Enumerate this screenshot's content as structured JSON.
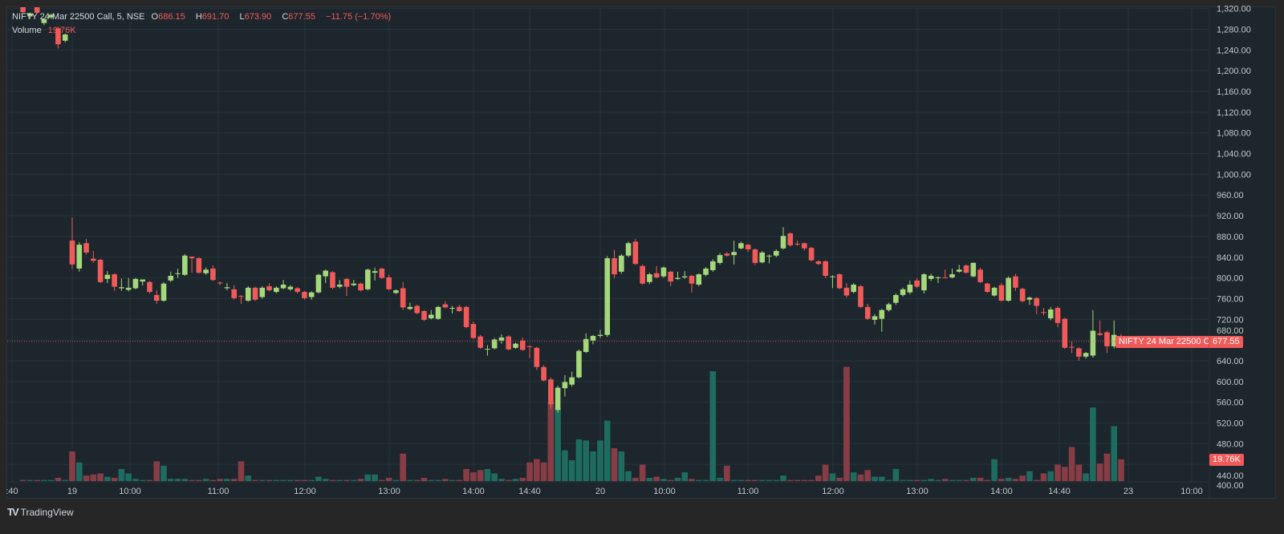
{
  "legend": {
    "symbol": "NIFTY 24 Mar 22500 Call, 5, NSE",
    "open_label": "O",
    "open": "686.15",
    "high_label": "H",
    "high": "691.70",
    "low_label": "L",
    "low": "673.90",
    "close_label": "C",
    "close": "677.55",
    "change": "−11.75 (−1.70%)",
    "volume_label": "Volume",
    "volume": "19.76K"
  },
  "price_tag": {
    "name": "NIFTY 24 Mar 22500 Call",
    "value": "677.55"
  },
  "volume_tag": "19.76K",
  "branding": {
    "logo_text": "TradingView"
  },
  "colors": {
    "up": "#a5d77b",
    "down": "#f25a5a",
    "vol_up": "#1e6b60",
    "vol_down": "#883d46",
    "background": "#1c262c",
    "grid": "#27323a"
  },
  "chart_data": {
    "type": "candlestick",
    "title": "NIFTY 24 Mar 22500 Call, 5, NSE",
    "interval": "5",
    "ylim": [
      400,
      1320
    ],
    "price_ticks": [
      "1,320.00",
      "1,280.00",
      "1,240.00",
      "1,200.00",
      "1,160.00",
      "1,120.00",
      "1,080.00",
      "1,040.00",
      "1,000.00",
      "960.00",
      "920.00",
      "880.00",
      "840.00",
      "800.00",
      "760.00",
      "720.00",
      "680.00",
      "640.00",
      "600.00",
      "560.00",
      "520.00",
      "480.00",
      "440.00",
      "400.00"
    ],
    "price_tick_values": [
      1320,
      1280,
      1240,
      1200,
      1160,
      1120,
      1080,
      1040,
      1000,
      960,
      920,
      880,
      840,
      800,
      760,
      720,
      680,
      640,
      600,
      560,
      520,
      480,
      440,
      400
    ],
    "time_ticks": [
      ":40",
      "19",
      "10:00",
      "11:00",
      "12:00",
      "13:00",
      "14:00",
      "14:40",
      "20",
      "10:00",
      "11:00",
      "12:00",
      "13:00",
      "14:00",
      "14:40",
      "23",
      "10:00"
    ],
    "last_price": 677.55,
    "volume_unit": "K",
    "sessions": [
      {
        "name": "prior",
        "ohlc": [
          [
            1325,
            1330,
            1312,
            1313
          ],
          [
            1305,
            1312,
            1300,
            1310
          ],
          [
            1325,
            1328,
            1310,
            1312
          ],
          [
            1292,
            1302,
            1288,
            1300
          ],
          [
            1303,
            1310,
            1300,
            1308
          ],
          [
            1282,
            1285,
            1243,
            1251
          ],
          [
            1258,
            1272,
            1255,
            1270
          ]
        ],
        "volume": [
          1,
          1,
          1,
          1,
          1,
          3,
          1
        ]
      },
      {
        "name": "19",
        "ohlc": [
          [
            872,
            917,
            817,
            826
          ],
          [
            818,
            869,
            812,
            864
          ],
          [
            867,
            875,
            845,
            849
          ],
          [
            837,
            852,
            829,
            833
          ],
          [
            835,
            837,
            790,
            792
          ],
          [
            798,
            813,
            790,
            806
          ],
          [
            807,
            809,
            775,
            783
          ],
          [
            780,
            799,
            775,
            782
          ],
          [
            777,
            800,
            774,
            781
          ],
          [
            780,
            800,
            778,
            798
          ],
          [
            793,
            797,
            785,
            797
          ],
          [
            792,
            794,
            770,
            773
          ],
          [
            767,
            776,
            750,
            756
          ],
          [
            756,
            792,
            754,
            789
          ],
          [
            795,
            812,
            792,
            804
          ],
          [
            808,
            818,
            800,
            809
          ],
          [
            806,
            846,
            804,
            843
          ],
          [
            841,
            842,
            810,
            838
          ],
          [
            838,
            840,
            808,
            810
          ],
          [
            809,
            820,
            806,
            816
          ],
          [
            818,
            824,
            794,
            796
          ],
          [
            791,
            793,
            786,
            790
          ],
          [
            780,
            790,
            776,
            782
          ],
          [
            778,
            786,
            758,
            761
          ],
          [
            765,
            767,
            750,
            764
          ],
          [
            756,
            784,
            754,
            781
          ],
          [
            781,
            783,
            755,
            758
          ],
          [
            763,
            784,
            760,
            781
          ],
          [
            784,
            790,
            774,
            776
          ],
          [
            773,
            784,
            770,
            781
          ],
          [
            780,
            796,
            778,
            787
          ],
          [
            778,
            786,
            775,
            783
          ],
          [
            780,
            782,
            770,
            773
          ],
          [
            773,
            775,
            758,
            761
          ],
          [
            763,
            774,
            758,
            772
          ],
          [
            772,
            808,
            770,
            806
          ],
          [
            803,
            816,
            790,
            814
          ],
          [
            811,
            813,
            778,
            781
          ],
          [
            783,
            796,
            780,
            787
          ],
          [
            798,
            800,
            765,
            783
          ],
          [
            786,
            796,
            784,
            789
          ],
          [
            789,
            791,
            774,
            776
          ],
          [
            778,
            818,
            776,
            816
          ],
          [
            810,
            820,
            795,
            813
          ],
          [
            818,
            820,
            798,
            800
          ],
          [
            801,
            806,
            776,
            778
          ],
          [
            771,
            778,
            769,
            776
          ],
          [
            780,
            792,
            738,
            743
          ],
          [
            740,
            752,
            738,
            744
          ],
          [
            746,
            748,
            730,
            732
          ],
          [
            736,
            738,
            717,
            719
          ],
          [
            722,
            738,
            720,
            729
          ],
          [
            721,
            746,
            719,
            744
          ],
          [
            749,
            755,
            741,
            743
          ],
          [
            741,
            746,
            731,
            742
          ],
          [
            744,
            748,
            734,
            736
          ],
          [
            744,
            746,
            703,
            705
          ],
          [
            711,
            716,
            682,
            684
          ],
          [
            687,
            690,
            663,
            665
          ],
          [
            662,
            670,
            650,
            663
          ],
          [
            664,
            684,
            662,
            681
          ],
          [
            679,
            691,
            673,
            685
          ],
          [
            687,
            689,
            660,
            662
          ],
          [
            665,
            675,
            663,
            673
          ],
          [
            679,
            685,
            659,
            661
          ],
          [
            668,
            670,
            645,
            667
          ],
          [
            665,
            667,
            622,
            628
          ],
          [
            628,
            632,
            600,
            602
          ],
          [
            604,
            608,
            548,
            556
          ],
          [
            545,
            592,
            540,
            588
          ],
          [
            587,
            612,
            571,
            599
          ],
          [
            594,
            619,
            590,
            608
          ],
          [
            608,
            662,
            606,
            659
          ],
          [
            657,
            693,
            655,
            682
          ],
          [
            679,
            690,
            672,
            688
          ]
        ],
        "volume": [
          27,
          17,
          5,
          6,
          7,
          4,
          3,
          11,
          7,
          2,
          1,
          1,
          18,
          14,
          2,
          2,
          2,
          1,
          1,
          2,
          1,
          2,
          2,
          2,
          18,
          5,
          1,
          1,
          1,
          1,
          1,
          1,
          1,
          1,
          1,
          4,
          2,
          1,
          1,
          1,
          1,
          2,
          6,
          6,
          1,
          3,
          1,
          25,
          1,
          1,
          3,
          1,
          1,
          2,
          1,
          1,
          11,
          8,
          10,
          11,
          7,
          2,
          1,
          2,
          3,
          17,
          20,
          17,
          72,
          66,
          28,
          19,
          38,
          37,
          27
        ]
      },
      {
        "name": "20",
        "ohlc": [
          [
            688,
            700,
            684,
            690
          ],
          [
            690,
            842,
            686,
            838
          ],
          [
            838,
            854,
            800,
            807
          ],
          [
            812,
            846,
            808,
            843
          ],
          [
            843,
            870,
            840,
            867
          ],
          [
            870,
            875,
            825,
            827
          ],
          [
            823,
            826,
            787,
            789
          ],
          [
            792,
            810,
            788,
            807
          ],
          [
            809,
            823,
            799,
            801
          ],
          [
            803,
            822,
            800,
            820
          ],
          [
            812,
            814,
            784,
            793
          ],
          [
            798,
            812,
            796,
            800
          ],
          [
            801,
            813,
            798,
            803
          ],
          [
            804,
            806,
            772,
            789
          ],
          [
            787,
            809,
            784,
            807
          ],
          [
            806,
            821,
            803,
            818
          ],
          [
            815,
            836,
            812,
            832
          ],
          [
            829,
            848,
            826,
            844
          ],
          [
            847,
            850,
            841,
            843
          ],
          [
            844,
            872,
            826,
            850
          ],
          [
            857,
            870,
            855,
            867
          ],
          [
            864,
            866,
            850,
            855
          ],
          [
            855,
            857,
            825,
            829
          ],
          [
            830,
            852,
            828,
            849
          ],
          [
            843,
            845,
            828,
            843
          ],
          [
            843,
            855,
            840,
            852
          ],
          [
            857,
            898,
            855,
            881
          ],
          [
            886,
            888,
            860,
            863
          ],
          [
            866,
            872,
            862,
            865
          ],
          [
            867,
            868,
            853,
            857
          ],
          [
            858,
            860,
            832,
            834
          ],
          [
            832,
            834,
            825,
            827
          ],
          [
            832,
            834,
            800,
            804
          ],
          [
            803,
            805,
            780,
            803
          ],
          [
            807,
            809,
            778,
            780
          ],
          [
            781,
            790,
            762,
            766
          ],
          [
            773,
            790,
            770,
            787
          ],
          [
            784,
            786,
            742,
            744
          ],
          [
            744,
            750,
            719,
            721
          ],
          [
            719,
            730,
            710,
            726
          ],
          [
            721,
            740,
            696,
            738
          ],
          [
            738,
            752,
            735,
            749
          ],
          [
            752,
            770,
            748,
            767
          ],
          [
            767,
            781,
            764,
            778
          ],
          [
            772,
            795,
            768,
            787
          ],
          [
            795,
            800,
            780,
            783
          ],
          [
            776,
            809,
            770,
            807
          ],
          [
            798,
            808,
            794,
            804
          ],
          [
            801,
            803,
            790,
            801
          ],
          [
            801,
            816,
            799,
            800
          ],
          [
            801,
            818,
            799,
            807
          ],
          [
            812,
            825,
            810,
            816
          ],
          [
            824,
            826,
            808,
            810
          ],
          [
            803,
            830,
            801,
            829
          ],
          [
            816,
            820,
            790,
            792
          ],
          [
            789,
            791,
            771,
            773
          ],
          [
            766,
            783,
            764,
            781
          ],
          [
            786,
            790,
            754,
            756
          ],
          [
            756,
            803,
            754,
            800
          ],
          [
            803,
            808,
            775,
            781
          ],
          [
            779,
            781,
            753,
            755
          ],
          [
            758,
            764,
            748,
            762
          ],
          [
            761,
            763,
            730,
            746
          ],
          [
            734,
            742,
            728,
            733
          ],
          [
            722,
            744,
            718,
            739
          ],
          [
            742,
            745,
            705,
            713
          ],
          [
            721,
            723,
            663,
            665
          ],
          [
            667,
            677,
            655,
            666
          ],
          [
            664,
            666,
            640,
            648
          ],
          [
            648,
            657,
            644,
            655
          ],
          [
            650,
            738,
            646,
            698
          ],
          [
            693,
            718,
            688,
            690
          ],
          [
            695,
            698,
            655,
            668
          ],
          [
            668,
            718,
            664,
            690
          ],
          [
            686.15,
            691.7,
            673.9,
            677.55
          ]
        ],
        "volume": [
          37,
          55,
          30,
          27,
          9,
          3,
          15,
          3,
          4,
          2,
          1,
          3,
          8,
          2,
          1,
          1,
          100,
          3,
          14,
          1,
          1,
          1,
          1,
          1,
          1,
          1,
          5,
          1,
          1,
          1,
          1,
          5,
          15,
          7,
          3,
          104,
          8,
          6,
          10,
          4,
          4,
          1,
          11,
          1,
          1,
          1,
          1,
          2,
          1,
          2,
          1,
          1,
          1,
          3,
          3,
          1,
          20,
          2,
          3,
          2,
          5,
          9,
          1,
          7,
          9,
          15,
          13,
          31,
          15,
          7,
          67,
          16,
          25,
          50,
          19.76
        ]
      }
    ]
  }
}
